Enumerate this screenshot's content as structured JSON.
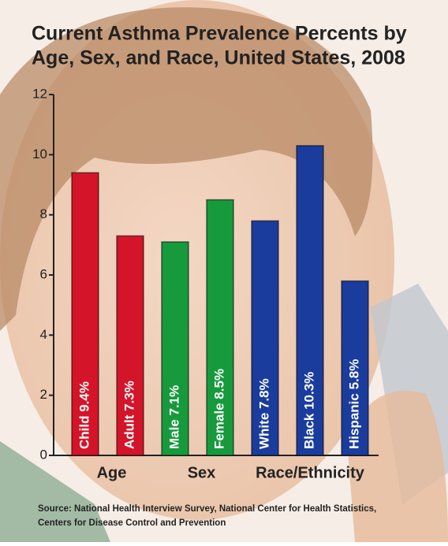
{
  "chart_data": {
    "type": "bar",
    "title": [
      "Current Asthma Prevalence Percents by",
      "Age, Sex, and Race, United States, 2008"
    ],
    "groups": [
      {
        "name": "Age",
        "color": "#d41428",
        "values": [
          9.4,
          7.3
        ],
        "value_labels": [
          "Child 9.4%",
          "Adult 7.3%"
        ]
      },
      {
        "name": "Sex",
        "color": "#169a3c",
        "values": [
          7.1,
          8.5
        ],
        "value_labels": [
          "Male 7.1%",
          "Female 8.5%"
        ]
      },
      {
        "name": "Race/Ethnicity",
        "color": "#1a3c9c",
        "values": [
          7.8,
          10.3,
          5.8
        ],
        "value_labels": [
          "White 7.8%",
          "Black 10.3%",
          "Hispanic 5.8%"
        ]
      }
    ],
    "ylim": [
      0,
      12
    ],
    "yticks": [
      0,
      2,
      4,
      6,
      8,
      10,
      12
    ],
    "source": [
      "Source: National Health Interview Survey, National Center for Health Statistics,",
      "Centers for Disease Control and Prevention"
    ]
  }
}
